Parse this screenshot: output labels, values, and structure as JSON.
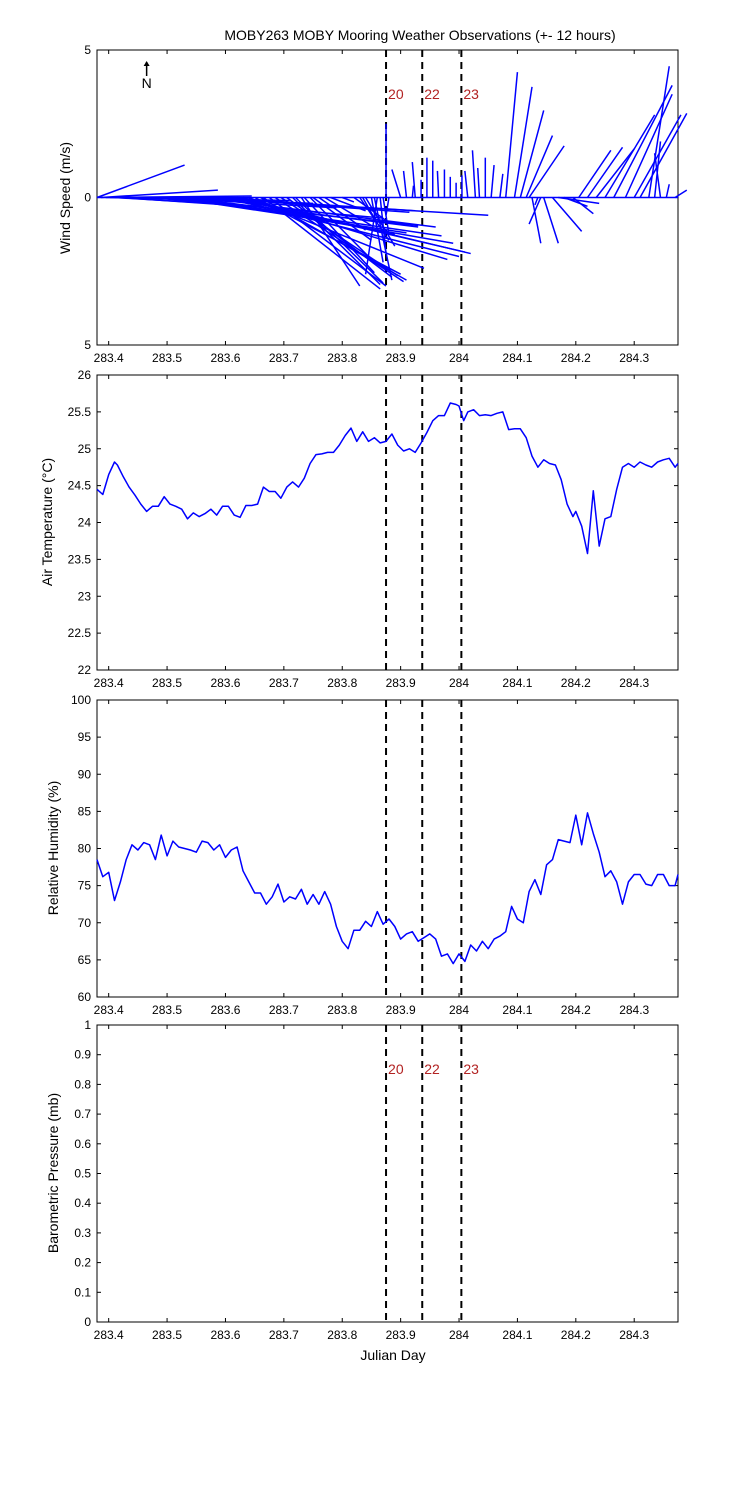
{
  "chart_data": [
    {
      "type": "quiver",
      "title": "MOBY263 MOBY Mooring Weather Observations (+- 12 hours)",
      "xlabel": "",
      "ylabel": "Wind Speed (m/s)",
      "xlim": [
        283.38,
        284.375
      ],
      "ylim": [
        -5,
        5
      ],
      "y_tick_labels": [
        "5",
        "0",
        "5"
      ],
      "x_ticks": [
        283.4,
        283.5,
        283.6,
        283.7,
        283.8,
        283.9,
        284,
        284.1,
        284.2,
        284.3
      ],
      "north_label": "N",
      "color": "#0000ff",
      "markers": [
        {
          "x": 283.875,
          "label": "20"
        },
        {
          "x": 283.937,
          "label": "22"
        },
        {
          "x": 284.004,
          "label": "23"
        }
      ],
      "vectors": [
        {
          "x": 283.38,
          "u": 0.15,
          "v": 1.1
        },
        {
          "x": 283.387,
          "u": 0.2,
          "v": 0.25
        },
        {
          "x": 283.395,
          "u": 0.25,
          "v": 0.05
        },
        {
          "x": 283.402,
          "u": 0.3,
          "v": -0.15
        },
        {
          "x": 283.41,
          "u": 0.25,
          "v": -0.3
        },
        {
          "x": 283.42,
          "u": 0.22,
          "v": -0.3
        },
        {
          "x": 283.43,
          "u": 0.25,
          "v": -0.15
        },
        {
          "x": 283.445,
          "u": 0.2,
          "v": -0.05
        },
        {
          "x": 283.46,
          "u": 0.25,
          "v": -0.1
        },
        {
          "x": 283.47,
          "u": 0.4,
          "v": -0.7
        },
        {
          "x": 283.48,
          "u": 0.45,
          "v": -0.95
        },
        {
          "x": 283.49,
          "u": 0.3,
          "v": -0.35
        },
        {
          "x": 283.5,
          "u": 0.25,
          "v": -0.2
        },
        {
          "x": 283.51,
          "u": 0.4,
          "v": -1.2
        },
        {
          "x": 283.52,
          "u": 0.45,
          "v": -1.3
        },
        {
          "x": 283.53,
          "u": 0.4,
          "v": -1.0
        },
        {
          "x": 283.54,
          "u": 0.45,
          "v": -1.55
        },
        {
          "x": 283.55,
          "u": 0.5,
          "v": -0.6
        },
        {
          "x": 283.56,
          "u": 0.4,
          "v": -1.0
        },
        {
          "x": 283.565,
          "u": 0.35,
          "v": -0.5
        },
        {
          "x": 283.575,
          "u": 0.35,
          "v": -0.45
        },
        {
          "x": 283.59,
          "u": 0.3,
          "v": -1.25
        },
        {
          "x": 283.6,
          "u": 0.4,
          "v": -2.0
        },
        {
          "x": 283.61,
          "u": 0.4,
          "v": -1.85
        },
        {
          "x": 283.62,
          "u": 0.4,
          "v": -1.9
        },
        {
          "x": 283.63,
          "u": 0.35,
          "v": -2.1
        },
        {
          "x": 283.64,
          "u": 0.3,
          "v": -2.4
        },
        {
          "x": 283.65,
          "u": 0.25,
          "v": -2.6
        },
        {
          "x": 283.66,
          "u": 0.25,
          "v": -2.8
        },
        {
          "x": 283.665,
          "u": 0.2,
          "v": -3.1
        },
        {
          "x": 283.675,
          "u": 0.2,
          "v": -3.0
        },
        {
          "x": 283.685,
          "u": 0.22,
          "v": -2.85
        },
        {
          "x": 283.695,
          "u": 0.2,
          "v": -2.65
        },
        {
          "x": 283.705,
          "u": 0.18,
          "v": -2.7
        },
        {
          "x": 283.715,
          "u": 0.15,
          "v": -2.95
        },
        {
          "x": 283.72,
          "u": 0.15,
          "v": -2.9
        },
        {
          "x": 283.73,
          "u": 0.1,
          "v": -3.0
        },
        {
          "x": 283.735,
          "u": 0.12,
          "v": -2.55
        },
        {
          "x": 283.745,
          "u": 0.1,
          "v": -2.0
        },
        {
          "x": 283.75,
          "u": 0.1,
          "v": -1.45
        },
        {
          "x": 283.76,
          "u": 0.08,
          "v": -1.1
        },
        {
          "x": 283.77,
          "u": 0.08,
          "v": -0.95
        },
        {
          "x": 283.78,
          "u": 0.06,
          "v": -0.45
        },
        {
          "x": 283.8,
          "u": 0.02,
          "v": -0.15
        },
        {
          "x": 283.82,
          "u": 0.06,
          "v": -0.85
        },
        {
          "x": 283.83,
          "u": 0.05,
          "v": -1.45
        },
        {
          "x": 283.835,
          "u": 0.02,
          "v": -0.7
        },
        {
          "x": 283.84,
          "u": 0.05,
          "v": -1.65
        },
        {
          "x": 283.85,
          "u": 0.02,
          "v": -2.2
        },
        {
          "x": 283.855,
          "u": 0.03,
          "v": -2.8
        },
        {
          "x": 283.86,
          "u": -0.02,
          "v": -2.6
        },
        {
          "x": 283.865,
          "u": 0.01,
          "v": -1.9
        },
        {
          "x": 283.87,
          "u": 0.01,
          "v": -1.25
        },
        {
          "x": 283.875,
          "u": 0.0,
          "v": 2.5
        },
        {
          "x": 283.88,
          "u": -0.005,
          "v": -0.6
        },
        {
          "x": 283.9,
          "u": -0.015,
          "v": 0.95
        },
        {
          "x": 283.91,
          "u": -0.005,
          "v": 0.9
        },
        {
          "x": 283.92,
          "u": 0.002,
          "v": 0.4
        },
        {
          "x": 283.925,
          "u": -0.005,
          "v": 1.2
        },
        {
          "x": 283.935,
          "u": 0.0,
          "v": 0.6
        },
        {
          "x": 283.945,
          "u": 0.0,
          "v": 1.35
        },
        {
          "x": 283.955,
          "u": 0.0,
          "v": 1.25
        },
        {
          "x": 283.965,
          "u": -0.002,
          "v": 0.9
        },
        {
          "x": 283.975,
          "u": 0.0,
          "v": 0.95
        },
        {
          "x": 283.985,
          "u": 0.0,
          "v": 0.7
        },
        {
          "x": 283.995,
          "u": 0.0,
          "v": 0.5
        },
        {
          "x": 284.005,
          "u": 0.0,
          "v": 0.75
        },
        {
          "x": 284.015,
          "u": -0.005,
          "v": 0.9
        },
        {
          "x": 284.028,
          "u": -0.005,
          "v": 1.6
        },
        {
          "x": 284.035,
          "u": -0.003,
          "v": 1.0
        },
        {
          "x": 284.045,
          "u": 0.0,
          "v": 1.35
        },
        {
          "x": 284.055,
          "u": 0.005,
          "v": 1.1
        },
        {
          "x": 284.07,
          "u": 0.005,
          "v": 0.8
        },
        {
          "x": 284.08,
          "u": 0.02,
          "v": 4.25
        },
        {
          "x": 284.095,
          "u": 0.03,
          "v": 3.75
        },
        {
          "x": 284.105,
          "u": 0.04,
          "v": 2.95
        },
        {
          "x": 284.115,
          "u": 0.045,
          "v": 2.1
        },
        {
          "x": 284.12,
          "u": 0.06,
          "v": 1.75
        },
        {
          "x": 284.125,
          "u": 0.015,
          "v": -1.55
        },
        {
          "x": 284.135,
          "u": -0.005,
          "v": -0.25
        },
        {
          "x": 284.14,
          "u": -0.02,
          "v": -0.9
        },
        {
          "x": 284.145,
          "u": 0.025,
          "v": -1.55
        },
        {
          "x": 284.16,
          "u": 0.05,
          "v": -1.15
        },
        {
          "x": 284.17,
          "u": 0.07,
          "v": -0.2
        },
        {
          "x": 284.18,
          "u": 0.04,
          "v": -0.3
        },
        {
          "x": 284.195,
          "u": 0.035,
          "v": -0.55
        },
        {
          "x": 284.205,
          "u": 0.055,
          "v": 1.6
        },
        {
          "x": 284.22,
          "u": 0.06,
          "v": 1.7
        },
        {
          "x": 284.235,
          "u": 0.065,
          "v": 1.65
        },
        {
          "x": 284.25,
          "u": 0.085,
          "v": 2.8
        },
        {
          "x": 284.265,
          "u": 0.1,
          "v": 3.8
        },
        {
          "x": 284.285,
          "u": 0.08,
          "v": 3.5
        },
        {
          "x": 284.3,
          "u": 0.08,
          "v": 2.8
        },
        {
          "x": 284.31,
          "u": 0.08,
          "v": 2.85
        },
        {
          "x": 284.325,
          "u": 0.035,
          "v": 4.45
        },
        {
          "x": 284.335,
          "u": 0.01,
          "v": 1.9
        },
        {
          "x": 284.345,
          "u": -0.01,
          "v": 1.5
        },
        {
          "x": 284.355,
          "u": 0.005,
          "v": 0.45
        },
        {
          "x": 284.37,
          "u": 0.02,
          "v": 0.25
        }
      ]
    },
    {
      "type": "line",
      "title": "",
      "xlabel": "",
      "ylabel": "Air Temperature (°C)",
      "xlim": [
        283.38,
        284.375
      ],
      "ylim": [
        22,
        26
      ],
      "y_ticks": [
        22,
        22.5,
        23,
        23.5,
        24,
        24.5,
        25,
        25.5,
        26
      ],
      "y_tick_labels": [
        "22",
        "22.5",
        "23",
        "23.5",
        "24",
        "24.5",
        "25",
        "25.5",
        "26"
      ],
      "x_ticks": [
        283.4,
        283.5,
        283.6,
        283.7,
        283.8,
        283.9,
        284,
        284.1,
        284.2,
        284.3
      ],
      "color": "#0000ff",
      "markers": [
        {
          "x": 283.875,
          "label": ""
        },
        {
          "x": 283.937,
          "label": ""
        },
        {
          "x": 284.004,
          "label": ""
        }
      ],
      "x": [
        283.38,
        283.39,
        283.4,
        283.41,
        283.415,
        283.425,
        283.435,
        283.445,
        283.455,
        283.465,
        283.475,
        283.485,
        283.495,
        283.505,
        283.515,
        283.525,
        283.535,
        283.545,
        283.555,
        283.565,
        283.575,
        283.585,
        283.595,
        283.605,
        283.615,
        283.625,
        283.635,
        283.645,
        283.655,
        283.665,
        283.675,
        283.685,
        283.695,
        283.705,
        283.715,
        283.725,
        283.735,
        283.745,
        283.755,
        283.765,
        283.775,
        283.785,
        283.795,
        283.805,
        283.815,
        283.825,
        283.835,
        283.845,
        283.855,
        283.865,
        283.875,
        283.885,
        283.895,
        283.905,
        283.915,
        283.925,
        283.935,
        283.945,
        283.955,
        283.965,
        283.975,
        283.985,
        283.995,
        284.0,
        284.008,
        284.015,
        284.025,
        284.035,
        284.045,
        284.055,
        284.065,
        284.075,
        284.085,
        284.095,
        284.105,
        284.115,
        284.125,
        284.135,
        284.145,
        284.155,
        284.165,
        284.175,
        284.185,
        284.195,
        284.2,
        284.21,
        284.22,
        284.23,
        284.24,
        284.25,
        284.26,
        284.27,
        284.28,
        284.29,
        284.3,
        284.31,
        284.32,
        284.33,
        284.34,
        284.35,
        284.36,
        284.37,
        284.375
      ],
      "y": [
        24.45,
        24.38,
        24.65,
        24.82,
        24.78,
        24.62,
        24.48,
        24.37,
        24.25,
        24.15,
        24.22,
        24.22,
        24.35,
        24.25,
        24.22,
        24.18,
        24.05,
        24.13,
        24.08,
        24.12,
        24.18,
        24.1,
        24.22,
        24.22,
        24.1,
        24.07,
        24.23,
        24.23,
        24.25,
        24.48,
        24.42,
        24.42,
        24.33,
        24.48,
        24.55,
        24.48,
        24.6,
        24.8,
        24.92,
        24.93,
        24.95,
        24.95,
        25.05,
        25.18,
        25.28,
        25.1,
        25.23,
        25.1,
        25.15,
        25.08,
        25.1,
        25.2,
        25.05,
        24.97,
        25.0,
        24.95,
        25.08,
        25.22,
        25.38,
        25.45,
        25.45,
        25.62,
        25.6,
        25.58,
        25.38,
        25.5,
        25.53,
        25.45,
        25.46,
        25.45,
        25.48,
        25.5,
        25.26,
        25.27,
        25.27,
        25.15,
        24.9,
        24.75,
        24.85,
        24.8,
        24.78,
        24.58,
        24.25,
        24.08,
        24.15,
        23.95,
        23.58,
        24.43,
        23.68,
        24.05,
        24.08,
        24.45,
        24.75,
        24.8,
        24.75,
        24.82,
        24.78,
        24.75,
        24.82,
        24.85,
        24.87,
        24.75,
        24.8
      ]
    },
    {
      "type": "line",
      "title": "",
      "xlabel": "",
      "ylabel": "Relative Humidity (%)",
      "xlim": [
        283.38,
        284.375
      ],
      "ylim": [
        60,
        100
      ],
      "y_ticks": [
        60,
        65,
        70,
        75,
        80,
        85,
        90,
        95,
        100
      ],
      "y_tick_labels": [
        "60",
        "65",
        "70",
        "75",
        "80",
        "85",
        "90",
        "95",
        "100"
      ],
      "x_ticks": [
        283.4,
        283.5,
        283.6,
        283.7,
        283.8,
        283.9,
        284,
        284.1,
        284.2,
        284.3
      ],
      "color": "#0000ff",
      "markers": [
        {
          "x": 283.875,
          "label": ""
        },
        {
          "x": 283.937,
          "label": ""
        },
        {
          "x": 284.004,
          "label": ""
        }
      ],
      "x": [
        283.38,
        283.39,
        283.4,
        283.41,
        283.42,
        283.43,
        283.44,
        283.45,
        283.46,
        283.47,
        283.48,
        283.49,
        283.5,
        283.51,
        283.52,
        283.53,
        283.54,
        283.55,
        283.56,
        283.57,
        283.58,
        283.59,
        283.6,
        283.61,
        283.62,
        283.63,
        283.64,
        283.65,
        283.66,
        283.67,
        283.68,
        283.69,
        283.7,
        283.71,
        283.72,
        283.73,
        283.74,
        283.75,
        283.76,
        283.77,
        283.78,
        283.79,
        283.8,
        283.81,
        283.82,
        283.83,
        283.84,
        283.85,
        283.86,
        283.87,
        283.88,
        283.89,
        283.9,
        283.91,
        283.92,
        283.93,
        283.94,
        283.95,
        283.96,
        283.97,
        283.98,
        283.99,
        284.0,
        284.01,
        284.02,
        284.03,
        284.04,
        284.05,
        284.06,
        284.07,
        284.08,
        284.09,
        284.1,
        284.11,
        284.12,
        284.13,
        284.14,
        284.15,
        284.16,
        284.17,
        284.18,
        284.19,
        284.2,
        284.21,
        284.22,
        284.23,
        284.24,
        284.25,
        284.26,
        284.27,
        284.28,
        284.29,
        284.3,
        284.31,
        284.32,
        284.33,
        284.34,
        284.35,
        284.36,
        284.37,
        284.375
      ],
      "y": [
        78.5,
        76.2,
        76.8,
        73.0,
        75.5,
        78.5,
        80.5,
        79.8,
        80.8,
        80.5,
        78.5,
        81.8,
        79.0,
        81.0,
        80.2,
        80.0,
        79.8,
        79.5,
        81.0,
        80.8,
        79.8,
        80.5,
        78.8,
        79.8,
        80.2,
        77.0,
        75.5,
        74.0,
        74.0,
        72.5,
        73.5,
        75.2,
        72.8,
        73.5,
        73.2,
        74.5,
        72.5,
        73.8,
        72.5,
        74.2,
        72.5,
        69.5,
        67.5,
        66.5,
        69.0,
        69.0,
        70.2,
        69.5,
        71.5,
        69.8,
        70.5,
        69.5,
        67.8,
        68.5,
        68.8,
        67.5,
        68.0,
        68.5,
        67.8,
        65.5,
        65.8,
        64.5,
        65.8,
        64.8,
        67.0,
        66.2,
        67.5,
        66.5,
        67.8,
        68.2,
        68.8,
        72.2,
        70.5,
        70.0,
        74.2,
        75.8,
        73.8,
        77.8,
        78.5,
        81.2,
        81.0,
        80.8,
        84.5,
        80.5,
        84.8,
        82.0,
        79.5,
        76.2,
        77.0,
        75.5,
        72.5,
        75.5,
        76.5,
        76.5,
        75.2,
        75.0,
        76.5,
        76.5,
        75.0,
        75.0,
        76.5
      ]
    },
    {
      "type": "line",
      "title": "",
      "xlabel": "Julian Day",
      "ylabel": "Barometric Pressure (mb)",
      "xlim": [
        283.38,
        284.375
      ],
      "ylim": [
        0,
        1
      ],
      "y_ticks": [
        0,
        0.1,
        0.2,
        0.3,
        0.4,
        0.5,
        0.6,
        0.7,
        0.8,
        0.9,
        1
      ],
      "y_tick_labels": [
        "0",
        "0.1",
        "0.2",
        "0.3",
        "0.4",
        "0.5",
        "0.6",
        "0.7",
        "0.8",
        "0.9",
        "1"
      ],
      "x_ticks": [
        283.4,
        283.5,
        283.6,
        283.7,
        283.8,
        283.9,
        284,
        284.1,
        284.2,
        284.3
      ],
      "color": "#0000ff",
      "markers": [
        {
          "x": 283.875,
          "label": "20"
        },
        {
          "x": 283.937,
          "label": "22"
        },
        {
          "x": 284.004,
          "label": "23"
        }
      ],
      "x": [],
      "y": []
    }
  ]
}
